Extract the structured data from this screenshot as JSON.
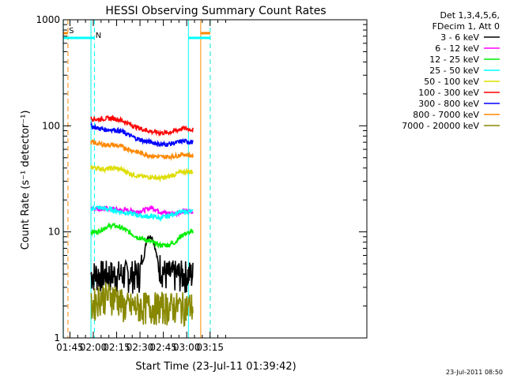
{
  "chart_data": {
    "type": "line",
    "title": "HESSI Observing Summary Count Rates",
    "xlabel": "Start Time (23-Jul-11 01:39:42)",
    "ylabel": "Count Rate (s⁻¹ detector⁻¹)",
    "y_scale": "log",
    "ylim": [
      1,
      1000
    ],
    "y_ticks": [
      {
        "value": 1,
        "label": "1"
      },
      {
        "value": 10,
        "label": "10"
      },
      {
        "value": 100,
        "label": "100"
      },
      {
        "value": 1000,
        "label": "1000"
      }
    ],
    "x_range_min": [
      1.0,
      196.0
    ],
    "x_ticks": [
      {
        "min": 5.3,
        "label": "01:45"
      },
      {
        "min": 20.3,
        "label": "02:00"
      },
      {
        "min": 35.3,
        "label": "02:15"
      },
      {
        "min": 50.3,
        "label": "02:30"
      },
      {
        "min": 65.3,
        "label": "02:45"
      },
      {
        "min": 80.3,
        "label": "03:00"
      },
      {
        "min": 95.3,
        "label": "03:15"
      }
    ],
    "legend_header": [
      "Det 1,3,4,5,6,",
      "FDecim 1, Att 0"
    ],
    "legend_position": "top-right outside plot",
    "series": [
      {
        "name": "3 - 6 keV",
        "color": "#000000",
        "x": [
          18.8,
          23,
          28,
          33,
          38,
          43,
          47,
          50,
          53,
          55,
          58,
          62,
          67,
          72,
          77,
          82,
          84.3
        ],
        "y": [
          4,
          4,
          4,
          4,
          4,
          4,
          4,
          4,
          6,
          9,
          9,
          5,
          4,
          4,
          4,
          4,
          4
        ]
      },
      {
        "name": "6 - 12 keV",
        "color": "#ff00ff",
        "x": [
          18.8,
          23,
          28,
          33,
          38,
          43,
          48,
          53,
          58,
          63,
          68,
          73,
          78,
          84.3
        ],
        "y": [
          17,
          16.5,
          16.5,
          16.5,
          16,
          16,
          15.5,
          16,
          17,
          15.5,
          15,
          15,
          15.5,
          15.5
        ]
      },
      {
        "name": "12 - 25 keV",
        "color": "#00ee00",
        "x": [
          18.8,
          23,
          28,
          33,
          38,
          43,
          48,
          53,
          58,
          63,
          68,
          73,
          78,
          84.3
        ],
        "y": [
          10,
          10,
          11,
          11.5,
          11,
          10,
          9,
          8.5,
          8,
          7.5,
          7.5,
          8,
          9.5,
          10
        ]
      },
      {
        "name": "25 - 50 keV",
        "color": "#00ffff",
        "x": [
          18.8,
          23,
          28,
          33,
          38,
          43,
          48,
          53,
          58,
          63,
          68,
          73,
          78,
          84.3
        ],
        "y": [
          16.5,
          17,
          16.5,
          16,
          15.5,
          15,
          14.5,
          14,
          14,
          13.5,
          14,
          15,
          15.5,
          15.5
        ]
      },
      {
        "name": "50 - 100 keV",
        "color": "#dddd00",
        "x": [
          18.8,
          23,
          28,
          33,
          38,
          43,
          48,
          53,
          58,
          63,
          68,
          73,
          78,
          84.3
        ],
        "y": [
          41,
          40,
          39,
          40,
          39,
          36,
          34,
          33,
          33,
          32,
          33,
          35,
          37,
          37
        ]
      },
      {
        "name": "100 - 300 keV",
        "color": "#ff0000",
        "x": [
          18.8,
          23,
          28,
          33,
          38,
          43,
          48,
          53,
          58,
          63,
          68,
          73,
          78,
          84.3
        ],
        "y": [
          118,
          115,
          117,
          118,
          113,
          105,
          97,
          92,
          88,
          86,
          86,
          90,
          95,
          92
        ]
      },
      {
        "name": "300 - 800 keV",
        "color": "#0000ff",
        "x": [
          18.8,
          23,
          28,
          33,
          38,
          43,
          48,
          53,
          58,
          63,
          68,
          73,
          78,
          84.3
        ],
        "y": [
          100,
          95,
          92,
          92,
          89,
          82,
          76,
          72,
          70,
          67,
          67,
          69,
          72,
          70
        ]
      },
      {
        "name": "800 - 7000 keV",
        "color": "#ff8800",
        "x": [
          18.8,
          23,
          28,
          33,
          38,
          43,
          48,
          53,
          58,
          63,
          68,
          73,
          78,
          84.3
        ],
        "y": [
          70,
          68,
          66,
          66,
          64,
          60,
          57,
          54,
          52,
          51,
          51,
          52,
          54,
          52
        ]
      },
      {
        "name": "7000 - 20000 keV",
        "color": "#888800",
        "x": [
          18.8,
          25,
          30,
          35,
          40,
          45,
          50,
          55,
          60,
          65,
          70,
          75,
          80,
          84.3
        ],
        "y": [
          2,
          2.5,
          2.5,
          2.5,
          2,
          2,
          2,
          2,
          2,
          2,
          2,
          2,
          2,
          2
        ]
      }
    ],
    "markers": [
      {
        "label": "S",
        "color": "#ff8800",
        "style": "dashed-line",
        "x_min": 4.0
      },
      {
        "label": "S",
        "color": "#ff8800",
        "style": "dashed-line",
        "x_min": 95.4
      },
      {
        "label": "S",
        "color": "#ff8800",
        "style": "solid-line",
        "x_min": 18.8
      },
      {
        "label": "S",
        "color": "#ff8800",
        "style": "solid-line",
        "x_min": 89.3
      },
      {
        "label": "N",
        "color": "#00ffff",
        "style": "dashed-line",
        "x_min": 21.0
      },
      {
        "label": "N",
        "color": "#00ffff",
        "style": "dashed-line",
        "x_min": 95.4
      },
      {
        "label": "N",
        "color": "#00ffff",
        "style": "solid-line",
        "x_min": 1.1
      },
      {
        "label": "N",
        "color": "#00ffff",
        "style": "solid-line",
        "x_min": 18.8
      },
      {
        "label": "N",
        "color": "#00ffff",
        "style": "solid-line",
        "x_min": 81.4
      }
    ],
    "grid": false
  },
  "footer": {
    "timestamp": "23-Jul-2011 08:50"
  }
}
